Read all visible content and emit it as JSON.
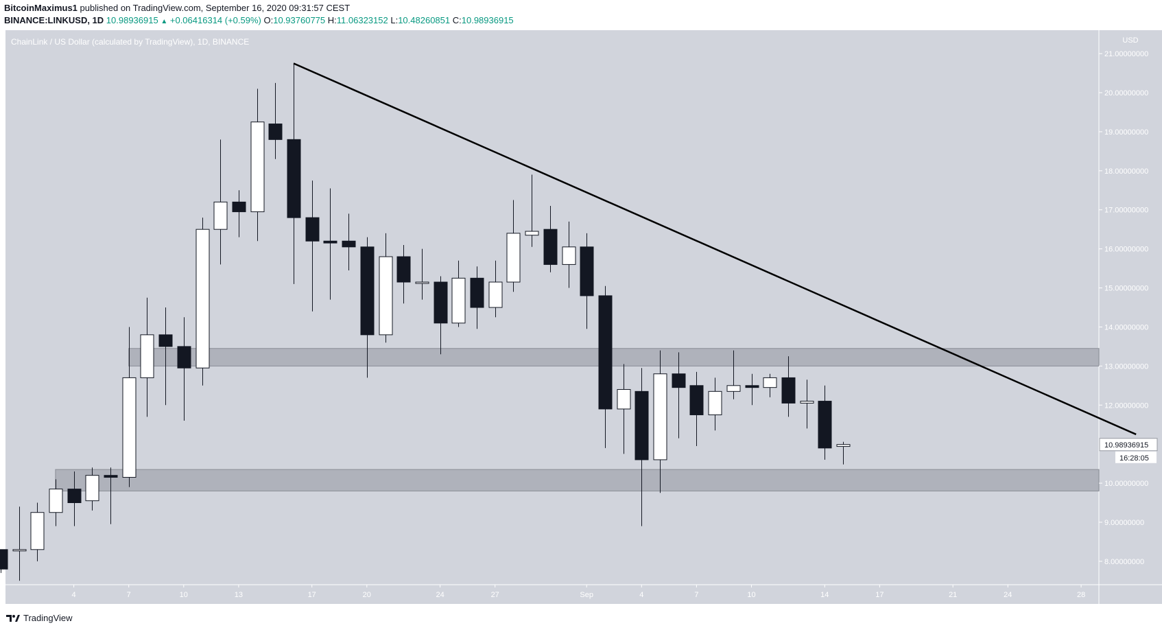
{
  "header": {
    "publisher": "BitcoinMaximus1",
    "published_text": "published on TradingView.com, September 16, 2020 09:31:57 CEST",
    "symbol": "BINANCE:LINKUSD, 1D",
    "last": "10.98936915",
    "arrow_icon": "up-triangle-icon",
    "change": "+0.06416314 (+0.59%)",
    "o_label": "O:",
    "o": "10.93760775",
    "h_label": "H:",
    "h": "11.06323152",
    "l_label": "L:",
    "l": "10.48260851",
    "c_label": "C:",
    "c": "10.98936915"
  },
  "footer": {
    "brand": "TradingView",
    "logo_icon": "tradingview-logo-icon"
  },
  "colors": {
    "plot_bg": "#d1d4dc",
    "up_body": "#ffffff",
    "down_body": "#131722",
    "wick": "#131722",
    "zone": "#787b86",
    "trendline": "#000000",
    "accent": "#089981"
  },
  "chart_data": {
    "type": "candlestick",
    "title": "ChainLink / US Dollar (calculated by TradingView), 1D, BINANCE",
    "currency_label": "USD",
    "ylim": [
      7.4,
      21.6
    ],
    "y_ticks": [
      "21.00000000",
      "20.00000000",
      "19.00000000",
      "18.00000000",
      "17.00000000",
      "16.00000000",
      "15.00000000",
      "14.00000000",
      "13.00000000",
      "12.00000000",
      "11.00000000",
      "10.00000000",
      "9.00000000",
      "8.00000000"
    ],
    "x_labels": [
      {
        "label": "4",
        "date": "2020-08-04"
      },
      {
        "label": "7",
        "date": "2020-08-07"
      },
      {
        "label": "10",
        "date": "2020-08-10"
      },
      {
        "label": "13",
        "date": "2020-08-13"
      },
      {
        "label": "17",
        "date": "2020-08-17"
      },
      {
        "label": "20",
        "date": "2020-08-20"
      },
      {
        "label": "24",
        "date": "2020-08-24"
      },
      {
        "label": "27",
        "date": "2020-08-27"
      },
      {
        "label": "Sep",
        "date": "2020-09-01"
      },
      {
        "label": "4",
        "date": "2020-09-04"
      },
      {
        "label": "7",
        "date": "2020-09-07"
      },
      {
        "label": "10",
        "date": "2020-09-10"
      },
      {
        "label": "14",
        "date": "2020-09-14"
      },
      {
        "label": "17",
        "date": "2020-09-17"
      },
      {
        "label": "21",
        "date": "2020-09-21"
      },
      {
        "label": "24",
        "date": "2020-09-24"
      },
      {
        "label": "28",
        "date": "2020-09-28"
      }
    ],
    "candles": [
      {
        "date": "2020-07-31",
        "o": 8.3,
        "h": 8.3,
        "l": 7.7,
        "c": 7.8
      },
      {
        "date": "2020-08-01",
        "o": 8.3,
        "h": 9.4,
        "l": 7.5,
        "c": 8.3
      },
      {
        "date": "2020-08-02",
        "o": 8.3,
        "h": 9.5,
        "l": 8.0,
        "c": 9.25
      },
      {
        "date": "2020-08-03",
        "o": 9.25,
        "h": 10.1,
        "l": 8.9,
        "c": 9.85
      },
      {
        "date": "2020-08-04",
        "o": 9.85,
        "h": 10.3,
        "l": 8.9,
        "c": 9.5
      },
      {
        "date": "2020-08-05",
        "o": 9.55,
        "h": 10.4,
        "l": 9.3,
        "c": 10.2
      },
      {
        "date": "2020-08-06",
        "o": 10.2,
        "h": 10.4,
        "l": 8.95,
        "c": 10.15
      },
      {
        "date": "2020-08-07",
        "o": 10.15,
        "h": 14.0,
        "l": 9.9,
        "c": 12.7
      },
      {
        "date": "2020-08-08",
        "o": 12.7,
        "h": 14.75,
        "l": 11.7,
        "c": 13.8
      },
      {
        "date": "2020-08-09",
        "o": 13.8,
        "h": 14.5,
        "l": 12.0,
        "c": 13.5
      },
      {
        "date": "2020-08-10",
        "o": 13.5,
        "h": 14.25,
        "l": 11.6,
        "c": 12.95
      },
      {
        "date": "2020-08-11",
        "o": 12.95,
        "h": 16.8,
        "l": 12.5,
        "c": 16.5
      },
      {
        "date": "2020-08-12",
        "o": 16.5,
        "h": 18.8,
        "l": 15.6,
        "c": 17.2
      },
      {
        "date": "2020-08-13",
        "o": 17.2,
        "h": 17.5,
        "l": 16.3,
        "c": 16.95
      },
      {
        "date": "2020-08-14",
        "o": 16.95,
        "h": 20.1,
        "l": 16.2,
        "c": 19.25
      },
      {
        "date": "2020-08-15",
        "o": 19.2,
        "h": 20.25,
        "l": 18.3,
        "c": 18.8
      },
      {
        "date": "2020-08-16",
        "o": 18.8,
        "h": 20.75,
        "l": 15.1,
        "c": 16.8
      },
      {
        "date": "2020-08-17",
        "o": 16.8,
        "h": 17.75,
        "l": 14.4,
        "c": 16.2
      },
      {
        "date": "2020-08-18",
        "o": 16.2,
        "h": 17.55,
        "l": 14.7,
        "c": 16.15
      },
      {
        "date": "2020-08-19",
        "o": 16.2,
        "h": 16.9,
        "l": 15.45,
        "c": 16.05
      },
      {
        "date": "2020-08-20",
        "o": 16.05,
        "h": 16.3,
        "l": 12.7,
        "c": 13.8
      },
      {
        "date": "2020-08-21",
        "o": 13.8,
        "h": 16.4,
        "l": 13.6,
        "c": 15.8
      },
      {
        "date": "2020-08-22",
        "o": 15.8,
        "h": 16.1,
        "l": 14.6,
        "c": 15.15
      },
      {
        "date": "2020-08-23",
        "o": 15.15,
        "h": 16.0,
        "l": 14.7,
        "c": 15.15
      },
      {
        "date": "2020-08-24",
        "o": 15.15,
        "h": 15.3,
        "l": 13.3,
        "c": 14.1
      },
      {
        "date": "2020-08-25",
        "o": 14.1,
        "h": 15.7,
        "l": 14.0,
        "c": 15.25
      },
      {
        "date": "2020-08-26",
        "o": 15.25,
        "h": 15.55,
        "l": 13.95,
        "c": 14.5
      },
      {
        "date": "2020-08-27",
        "o": 14.5,
        "h": 15.7,
        "l": 14.25,
        "c": 15.15
      },
      {
        "date": "2020-08-28",
        "o": 15.15,
        "h": 17.25,
        "l": 14.9,
        "c": 16.4
      },
      {
        "date": "2020-08-29",
        "o": 16.35,
        "h": 17.9,
        "l": 16.05,
        "c": 16.45
      },
      {
        "date": "2020-08-30",
        "o": 16.5,
        "h": 17.1,
        "l": 15.4,
        "c": 15.6
      },
      {
        "date": "2020-08-31",
        "o": 15.6,
        "h": 16.7,
        "l": 15.0,
        "c": 16.05
      },
      {
        "date": "2020-09-01",
        "o": 16.05,
        "h": 16.4,
        "l": 13.95,
        "c": 14.8
      },
      {
        "date": "2020-09-02",
        "o": 14.8,
        "h": 15.05,
        "l": 10.9,
        "c": 11.9
      },
      {
        "date": "2020-09-03",
        "o": 11.9,
        "h": 13.05,
        "l": 10.75,
        "c": 12.4
      },
      {
        "date": "2020-09-04",
        "o": 12.35,
        "h": 12.95,
        "l": 8.9,
        "c": 10.6
      },
      {
        "date": "2020-09-05",
        "o": 10.6,
        "h": 13.4,
        "l": 9.75,
        "c": 12.8
      },
      {
        "date": "2020-09-06",
        "o": 12.8,
        "h": 13.35,
        "l": 11.15,
        "c": 12.45
      },
      {
        "date": "2020-09-07",
        "o": 12.5,
        "h": 12.85,
        "l": 10.95,
        "c": 11.75
      },
      {
        "date": "2020-09-08",
        "o": 11.75,
        "h": 12.7,
        "l": 11.35,
        "c": 12.35
      },
      {
        "date": "2020-09-09",
        "o": 12.35,
        "h": 13.4,
        "l": 12.15,
        "c": 12.5
      },
      {
        "date": "2020-09-10",
        "o": 12.5,
        "h": 12.8,
        "l": 12.0,
        "c": 12.45
      },
      {
        "date": "2020-09-11",
        "o": 12.45,
        "h": 12.8,
        "l": 12.2,
        "c": 12.7
      },
      {
        "date": "2020-09-12",
        "o": 12.7,
        "h": 13.25,
        "l": 11.7,
        "c": 12.05
      },
      {
        "date": "2020-09-13",
        "o": 12.05,
        "h": 12.65,
        "l": 11.4,
        "c": 12.1
      },
      {
        "date": "2020-09-14",
        "o": 12.1,
        "h": 12.5,
        "l": 10.6,
        "c": 10.9
      },
      {
        "date": "2020-09-15",
        "o": 10.94,
        "h": 11.06,
        "l": 10.48,
        "c": 10.99
      }
    ],
    "zones": [
      {
        "low": 13.0,
        "high": 13.45,
        "start": "2020-08-07"
      },
      {
        "low": 9.8,
        "high": 10.35,
        "start": "2020-08-03"
      }
    ],
    "trendline": {
      "start": {
        "date": "2020-08-16",
        "price": 20.75
      },
      "end": {
        "date": "2020-10-01",
        "price": 11.25
      }
    },
    "last_price": {
      "label": "10.98936915",
      "countdown": "16:28:05"
    },
    "grid": false
  }
}
